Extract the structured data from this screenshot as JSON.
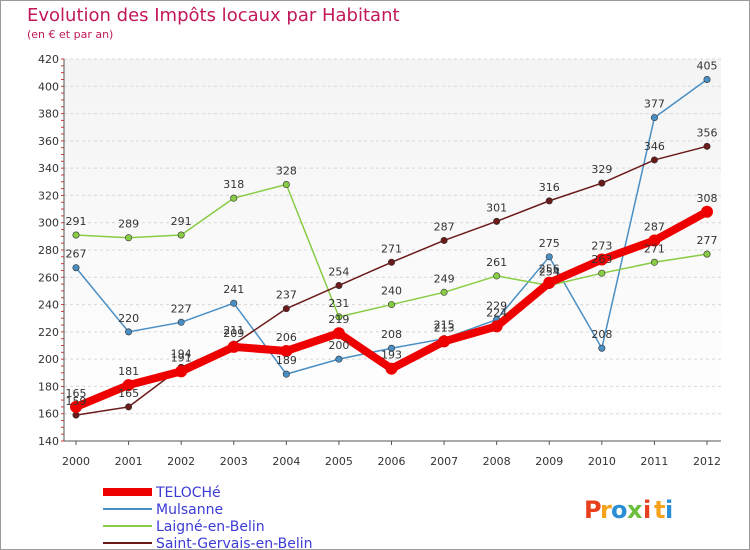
{
  "chart_data": {
    "type": "line",
    "title": "Evolution des Impôts locaux par Habitant",
    "subtitle": "(en € et par an)",
    "xlabel": "",
    "ylabel": "",
    "x": [
      "2000",
      "2001",
      "2002",
      "2003",
      "2004",
      "2005",
      "2006",
      "2007",
      "2008",
      "2009",
      "2010",
      "2011",
      "2012"
    ],
    "ylim": [
      140,
      420
    ],
    "yticks": [
      140,
      160,
      180,
      200,
      220,
      240,
      260,
      280,
      300,
      320,
      340,
      360,
      380,
      400,
      420
    ],
    "grid": "horizontal",
    "legend_position": "bottom-left",
    "series": [
      {
        "name": "Mulsanne",
        "color": "#4a8fc4",
        "values": [
          267,
          220,
          227,
          241,
          189,
          200,
          208,
          215,
          229,
          275,
          208,
          377,
          405
        ]
      },
      {
        "name": "Laigné-en-Belin",
        "color": "#88cc44",
        "values": [
          291,
          289,
          291,
          318,
          328,
          231,
          240,
          249,
          261,
          254,
          263,
          271,
          277
        ]
      },
      {
        "name": "Saint-Gervais-en-Belin",
        "color": "#6b1a1a",
        "values": [
          159,
          165,
          194,
          211,
          237,
          254,
          271,
          287,
          301,
          316,
          329,
          346,
          356
        ]
      },
      {
        "name": "TELOCHé",
        "color": "#ee0000",
        "values": [
          165,
          181,
          191,
          209,
          206,
          219,
          193,
          213,
          224,
          256,
          273,
          287,
          308
        ]
      }
    ],
    "legend": [
      "TELOCHé",
      "Mulsanne",
      "Laigné-en-Belin",
      "Saint-Gervais-en-Belin"
    ]
  },
  "brand": {
    "letters": [
      "P",
      "r",
      "o",
      "x",
      "i",
      "t",
      "i"
    ],
    "colors": [
      "#e8401c",
      "#f7a21b",
      "#2a8fd6",
      "#6cbf3c",
      "#e8401c",
      "#f7a21b",
      "#2a8fd6"
    ]
  }
}
